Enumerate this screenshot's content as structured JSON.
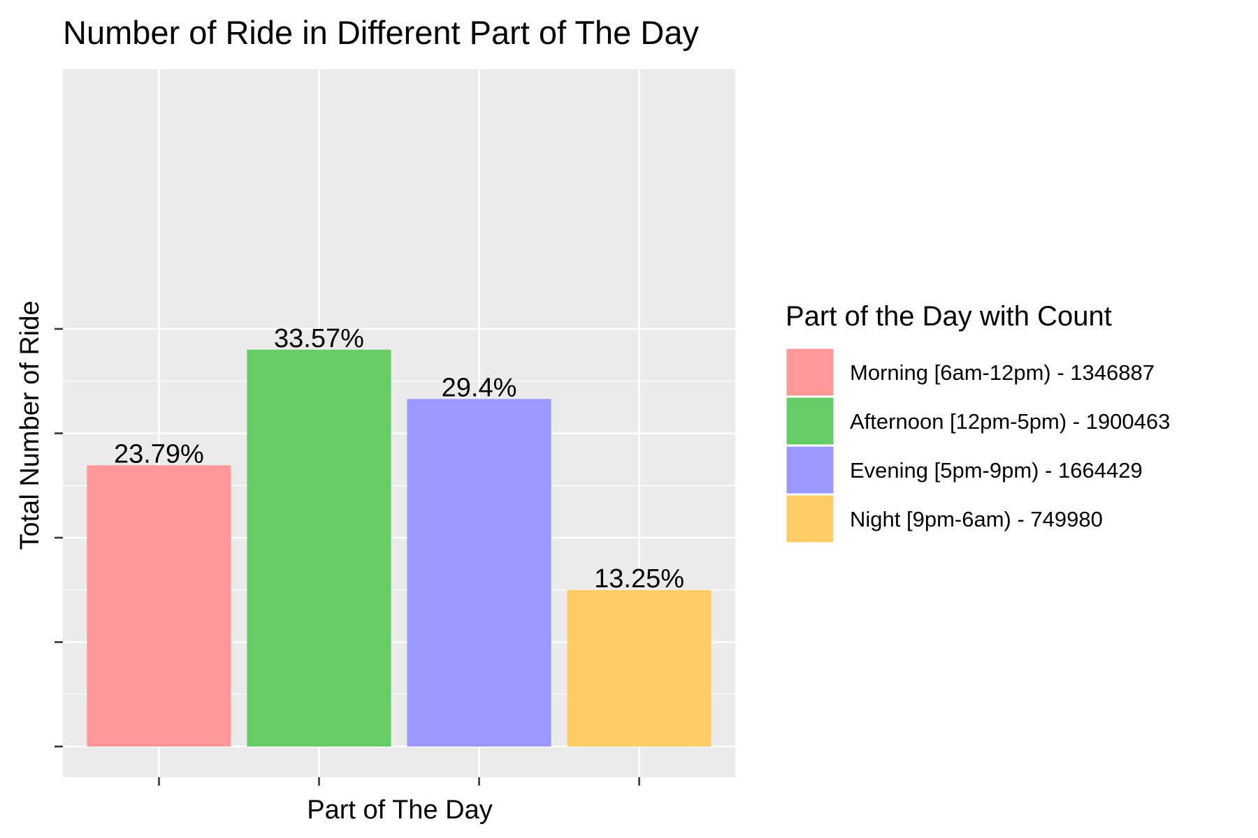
{
  "chart_data": {
    "type": "bar",
    "title": "Number of Ride in Different Part of The Day",
    "xlabel": "Part of The Day",
    "ylabel": "Total Number of Ride",
    "categories": [
      "Morning [6am-12pm)",
      "Afternoon [12pm-5pm)",
      "Evening [5pm-9pm)",
      "Night [9pm-6am)"
    ],
    "values": [
      1346887,
      1900463,
      1664429,
      749980
    ],
    "data_labels": [
      "23.79%",
      "33.57%",
      "29.4%",
      "13.25%"
    ],
    "colors": [
      "#FF9999",
      "#66CC66",
      "#9999FF",
      "#FFCC66"
    ],
    "ylim": [
      0,
      2000000
    ],
    "grid": true,
    "x_tick_labels_shown": false,
    "y_tick_labels_shown": false,
    "legend": {
      "title": "Part of the Day with Count",
      "placement": "right",
      "entries": [
        "Morning [6am-12pm) - 1346887",
        "Afternoon [12pm-5pm) - 1900463",
        "Evening [5pm-9pm) - 1664429",
        "Night [9pm-6am) - 749980"
      ]
    }
  }
}
